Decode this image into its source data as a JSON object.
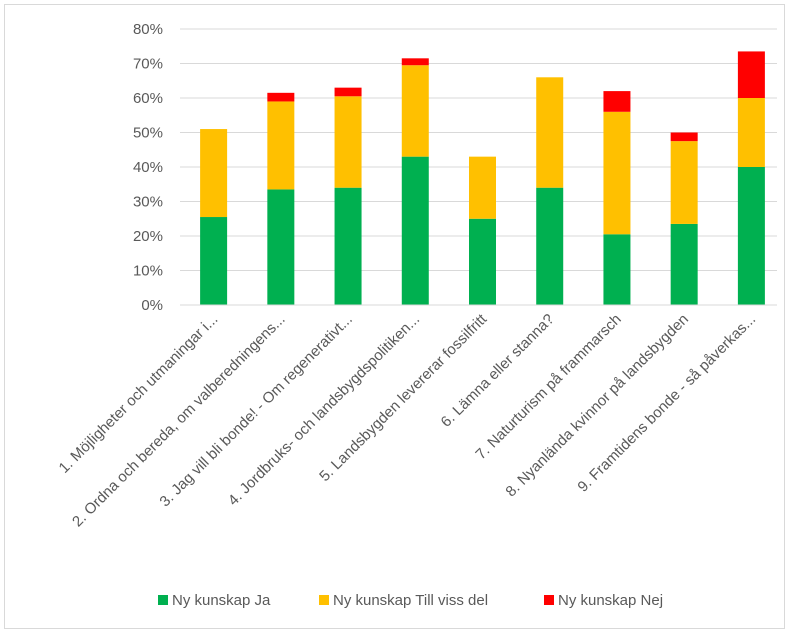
{
  "chart_data": {
    "type": "bar",
    "stacked": true,
    "categories": [
      "1. Möjligheter och utmaningar i...",
      "2. Ordna och bereda, om valberedningens...",
      "3. Jag vill bli bonde! - Om regenerativt...",
      "4. Jordbruks- och landsbygdspolitiken...",
      "5. Landsbygden levererar fossilfritt",
      "6. Lämna eller stanna?",
      "7. Naturturism på frammarsch",
      "8. Nyanlända kvinnor på landsbygden",
      "9. Framtidens bonde - så påverkas..."
    ],
    "series": [
      {
        "name": "Ny kunskap Ja",
        "color": "#00b050",
        "values": [
          25.5,
          33.5,
          34,
          43,
          25,
          34,
          20.5,
          23.5,
          40
        ]
      },
      {
        "name": "Ny kunskap Till viss del",
        "color": "#ffc000",
        "values": [
          25.5,
          25.5,
          26.5,
          26.5,
          18,
          32,
          35.5,
          24,
          20
        ]
      },
      {
        "name": "Ny kunskap Nej",
        "color": "#ff0000",
        "values": [
          0,
          2.5,
          2.5,
          2,
          0,
          0,
          6,
          2.5,
          13.5
        ]
      }
    ],
    "y_ticks": [
      "0%",
      "10%",
      "20%",
      "30%",
      "40%",
      "50%",
      "60%",
      "70%",
      "80%"
    ],
    "ylim": [
      0,
      80
    ],
    "grid": "horizontal",
    "legend_position": "bottom"
  }
}
